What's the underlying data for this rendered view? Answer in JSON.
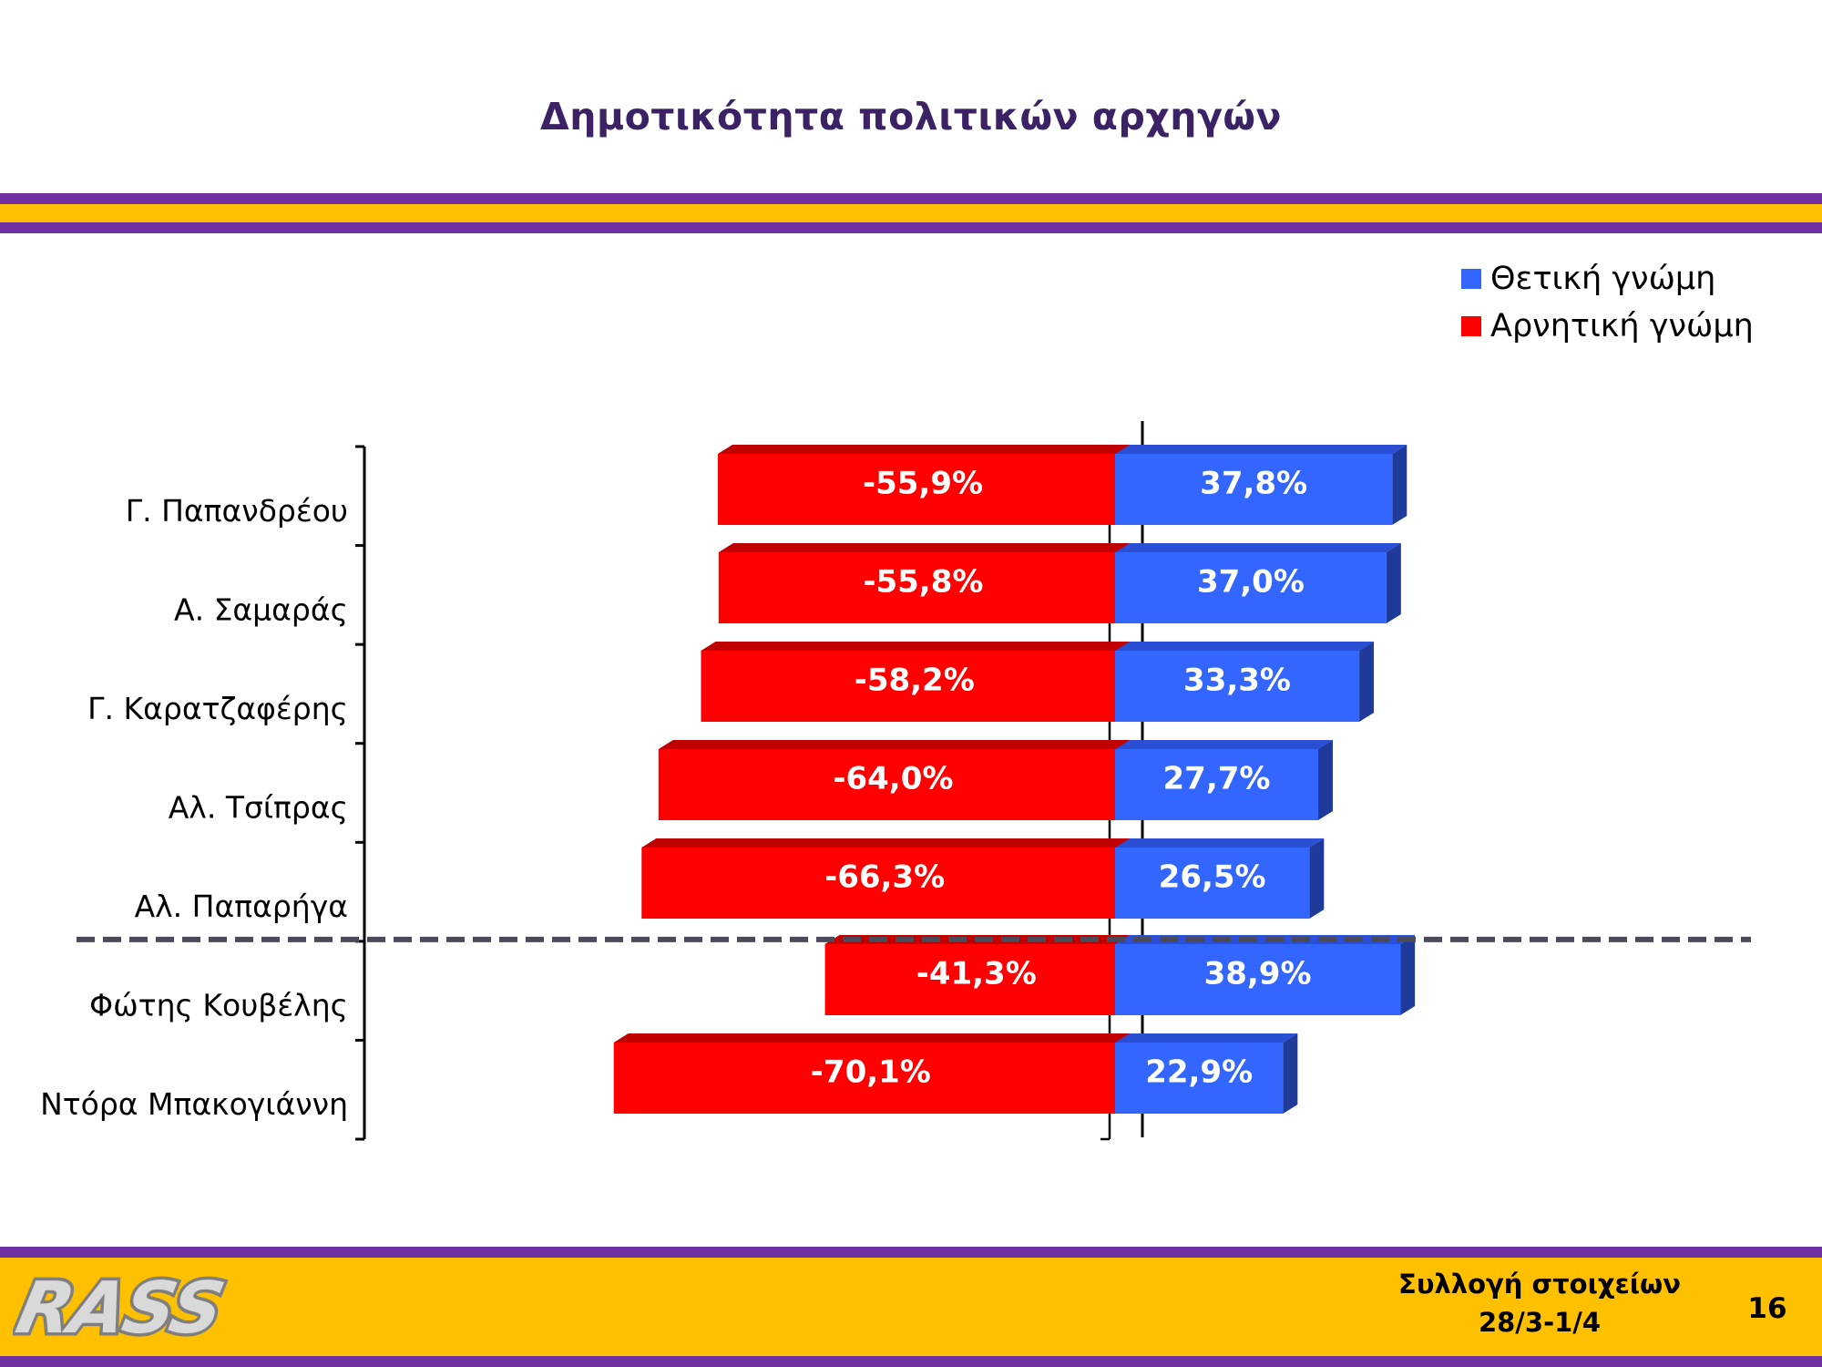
{
  "page": {
    "title": "Δημοτικότητα πολιτικών αρχηγών",
    "footer_title": "Συλλογή στοιχείων",
    "footer_dates": "28/3-1/4",
    "page_number": "16",
    "logo_text": "RASS"
  },
  "colors": {
    "purple": "#7030a0",
    "gold": "#ffc000",
    "positive": "#3366ff",
    "negative": "#ff0000",
    "title": "#3b2264"
  },
  "chart_data": {
    "type": "bar",
    "orientation": "horizontal",
    "stacked_diverging": true,
    "categories": [
      "Γ. Παπανδρέου",
      "Α. Σαμαράς",
      "Γ. Καρατζαφέρης",
      "Αλ. Τσίπρας",
      "Αλ. Παπαρήγα",
      "Φώτης Κουβέλης",
      "Ντόρα Μπακογιάννη"
    ],
    "series": [
      {
        "name": "Θετική γνώμη",
        "color": "#3366ff",
        "values": [
          37.8,
          37.0,
          33.3,
          27.7,
          26.5,
          38.9,
          22.9
        ],
        "labels": [
          "37,8%",
          "37,0%",
          "33,3%",
          "27,7%",
          "26,5%",
          "38,9%",
          "22,9%"
        ]
      },
      {
        "name": "Αρνητική γνώμη",
        "color": "#ff0000",
        "values": [
          -55.9,
          -55.8,
          -58.2,
          -64.0,
          -66.3,
          -41.3,
          -70.1
        ],
        "labels": [
          "-55,9%",
          "-55,8%",
          "-58,2%",
          "-64,0%",
          "-66,3%",
          "-41,3%",
          "-70,1%"
        ]
      }
    ],
    "separator_after_index": 4,
    "legend_position": "top-right",
    "grid": false,
    "title": "Δημοτικότητα πολιτικών αρχηγών"
  }
}
